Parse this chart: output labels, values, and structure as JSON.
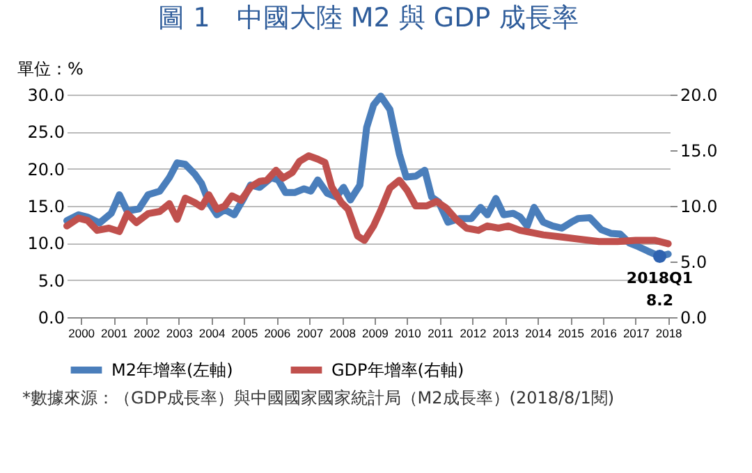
{
  "chart_data": {
    "type": "line",
    "title": "圖 1　中國大陸 M2 與 GDP 成長率",
    "ylabel": "單位：%",
    "xlim": [
      1999.57,
      2018.05
    ],
    "xticks": [
      2000,
      2001,
      2002,
      2003,
      2004,
      2005,
      2006,
      2007,
      2008,
      2009,
      2010,
      2011,
      2012,
      2013,
      2014,
      2015,
      2016,
      2017,
      2018
    ],
    "ylim": [
      0,
      30
    ],
    "yticks": [
      {
        "value": 0,
        "label": "0.0"
      },
      {
        "value": 5,
        "label": "5.0"
      },
      {
        "value": 10,
        "label": "10.0"
      },
      {
        "value": 15,
        "label": "15.0"
      },
      {
        "value": 20,
        "label": "20.0"
      },
      {
        "value": 25,
        "label": "25.0"
      },
      {
        "value": 30,
        "label": "30.0"
      }
    ],
    "y2lim": [
      0,
      20
    ],
    "y2ticks": [
      {
        "value": 0,
        "label": "0.0"
      },
      {
        "value": 5,
        "label": "5.0"
      },
      {
        "value": 10,
        "label": "10.0"
      },
      {
        "value": 15,
        "label": "15.0"
      },
      {
        "value": 20,
        "label": "20.0"
      }
    ],
    "grid": "y",
    "legend": "bottom",
    "series": [
      {
        "name": "M2年增率(左軸)",
        "color": "#4a7ebb",
        "x": [
          1999.57,
          1999.93,
          2000.2,
          2000.57,
          2000.93,
          2001.18,
          2001.42,
          2001.78,
          2002.06,
          2002.42,
          2002.71,
          2002.95,
          2003.2,
          2003.49,
          2003.7,
          2003.92,
          2004.17,
          2004.41,
          2004.7,
          2004.99,
          2005.2,
          2005.48,
          2005.84,
          2006.05,
          2006.27,
          2006.55,
          2006.84,
          2007.05,
          2007.26,
          2007.55,
          2007.83,
          2008.05,
          2008.26,
          2008.55,
          2008.76,
          2008.97,
          2009.19,
          2009.47,
          2009.76,
          2009.97,
          2010.26,
          2010.54,
          2010.75,
          2010.97,
          2011.25,
          2011.6,
          2011.97,
          2012.25,
          2012.46,
          2012.72,
          2012.96,
          2013.25,
          2013.46,
          2013.68,
          2013.89,
          2014.17,
          2014.46,
          2014.74,
          2015.03,
          2015.24,
          2015.6,
          2015.95,
          2016.24,
          2016.53,
          2016.81,
          2017.09,
          2017.38,
          2017.74,
          2018.0
        ],
        "values": [
          13.0,
          13.8,
          13.5,
          12.7,
          14.0,
          16.5,
          14.3,
          14.6,
          16.5,
          17.0,
          18.8,
          20.8,
          20.6,
          19.3,
          18.0,
          15.5,
          13.8,
          14.5,
          13.8,
          16.0,
          17.8,
          17.5,
          18.8,
          18.5,
          16.8,
          16.8,
          17.3,
          17.0,
          18.5,
          16.7,
          16.2,
          17.5,
          15.8,
          17.8,
          25.6,
          28.6,
          29.8,
          28.0,
          22.0,
          18.9,
          19.0,
          19.8,
          16.2,
          15.5,
          12.8,
          13.3,
          13.3,
          14.8,
          13.8,
          16.0,
          13.8,
          14.0,
          13.5,
          12.3,
          14.8,
          12.8,
          12.3,
          12.0,
          12.8,
          13.3,
          13.4,
          11.8,
          11.3,
          11.2,
          10.0,
          9.5,
          8.9,
          8.2,
          8.5
        ]
      },
      {
        "name": "GDP年增率(右軸)",
        "color": "#c0504d",
        "axis": "y2",
        "x": [
          1999.57,
          1999.93,
          2000.2,
          2000.5,
          2000.86,
          2001.18,
          2001.42,
          2001.7,
          2002.06,
          2002.42,
          2002.71,
          2002.95,
          2003.2,
          2003.49,
          2003.7,
          2003.92,
          2004.17,
          2004.41,
          2004.63,
          2004.91,
          2005.2,
          2005.48,
          2005.7,
          2005.98,
          2006.2,
          2006.48,
          2006.7,
          2006.98,
          2007.26,
          2007.48,
          2007.69,
          2007.98,
          2008.19,
          2008.48,
          2008.69,
          2008.97,
          2009.19,
          2009.47,
          2009.76,
          2010.0,
          2010.26,
          2010.6,
          2010.9,
          2011.2,
          2011.5,
          2011.82,
          2012.18,
          2012.46,
          2012.8,
          2013.1,
          2013.46,
          2013.82,
          2014.17,
          2014.74,
          2015.3,
          2015.88,
          2016.45,
          2017.0,
          2017.6,
          2018.0
        ],
        "values": [
          8.2,
          8.9,
          8.7,
          7.8,
          8.0,
          7.7,
          9.3,
          8.5,
          9.3,
          9.5,
          10.2,
          8.8,
          10.7,
          10.3,
          9.9,
          11.0,
          9.7,
          10.0,
          10.9,
          10.5,
          11.7,
          12.2,
          12.3,
          13.2,
          12.5,
          13.0,
          14.0,
          14.5,
          14.2,
          13.9,
          11.7,
          10.3,
          9.7,
          7.3,
          6.9,
          8.2,
          9.6,
          11.6,
          12.3,
          11.4,
          10.0,
          10.0,
          10.4,
          9.8,
          8.8,
          8.0,
          7.8,
          8.2,
          8.0,
          8.2,
          7.8,
          7.6,
          7.4,
          7.2,
          7.0,
          6.8,
          6.8,
          6.9,
          6.9,
          6.6
        ]
      }
    ],
    "annotations": [
      {
        "text": "2018Q1\n8.2",
        "x": 2017.74,
        "y": 8.2
      },
      "*數據來源：（GDP成長率）與中國國家國家統計局（M2成長率）(2018/8/1閱)"
    ]
  }
}
